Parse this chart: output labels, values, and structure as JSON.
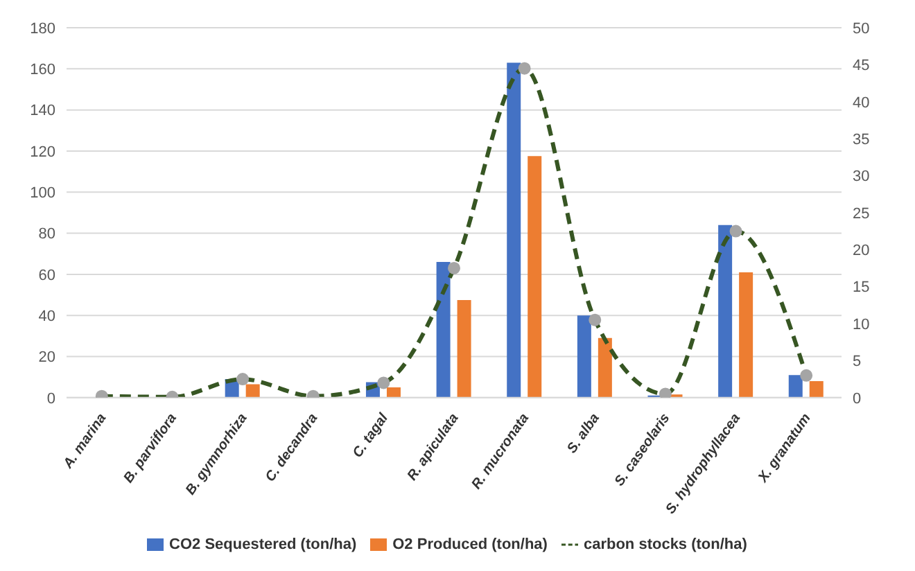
{
  "chart_data": {
    "type": "bar",
    "categories": [
      "A. marina",
      "B. parviflora",
      "B. gymnorhiza",
      "C. decandra",
      "C. tagal",
      "R. apiculata",
      "R. mucronata",
      "S. alba",
      "S. caseolaris",
      "S. hydrophyllacea",
      "X. granatum"
    ],
    "series": [
      {
        "name": "CO2 Sequestered (ton/ha)",
        "color": "#4472c4",
        "values": [
          0,
          0,
          9,
          0,
          7.5,
          66,
          163,
          40,
          1,
          84,
          11
        ]
      },
      {
        "name": "O2 Produced (ton/ha)",
        "color": "#ed7d31",
        "values": [
          0,
          0,
          6.5,
          0,
          5,
          47.5,
          117.5,
          29,
          1.5,
          61,
          8
        ]
      },
      {
        "name": "carbon stocks (ton/ha)",
        "type": "line",
        "axis": "y2",
        "color": "#375623",
        "line_style": "dashed",
        "marker": "circle",
        "values": [
          0.2,
          0.1,
          2.5,
          0.2,
          2,
          17.5,
          44.5,
          10.5,
          0.5,
          22.5,
          3
        ]
      }
    ],
    "ylim": [
      0,
      180
    ],
    "yticks": [
      0,
      20,
      40,
      60,
      80,
      100,
      120,
      140,
      160,
      180
    ],
    "y2lim": [
      0,
      50
    ],
    "y2ticks": [
      0,
      5,
      10,
      15,
      20,
      25,
      30,
      35,
      40,
      45,
      50
    ],
    "grid": "y",
    "legend": "bottom"
  }
}
